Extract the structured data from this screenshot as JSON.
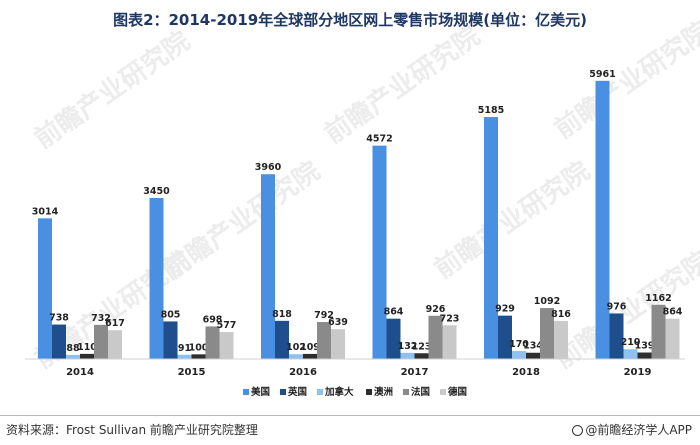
{
  "title": "图表2：2014-2019年全球部分地区网上零售市场规模(单位：亿美元)",
  "watermark_text": "前瞻产业研究院",
  "source": "资料来源：Frost Sullivan 前瞻产业研究院整理",
  "brand": "@前瞻经济学人APP",
  "chart_data": {
    "type": "bar",
    "categories": [
      "2014",
      "2015",
      "2016",
      "2017",
      "2018",
      "2019"
    ],
    "series": [
      {
        "name": "美国",
        "color": "#4a90e2",
        "values": [
          3014,
          3450,
          3960,
          4572,
          5185,
          5961
        ]
      },
      {
        "name": "英国",
        "color": "#1f4e8c",
        "values": [
          738,
          805,
          818,
          864,
          929,
          976
        ]
      },
      {
        "name": "加拿大",
        "color": "#8ec1ee",
        "values": [
          88,
          91,
          102,
          132,
          170,
          210
        ]
      },
      {
        "name": "澳洲",
        "color": "#2e2e2e",
        "values": [
          110,
          100,
          109,
          123,
          134,
          139
        ]
      },
      {
        "name": "法国",
        "color": "#8a8a8a",
        "values": [
          732,
          698,
          792,
          926,
          1092,
          1162
        ]
      },
      {
        "name": "德国",
        "color": "#c9c9c9",
        "values": [
          617,
          577,
          639,
          723,
          816,
          864
        ]
      }
    ],
    "ylim": [
      0,
      6000
    ],
    "legend_position": "bottom",
    "grid": false
  }
}
